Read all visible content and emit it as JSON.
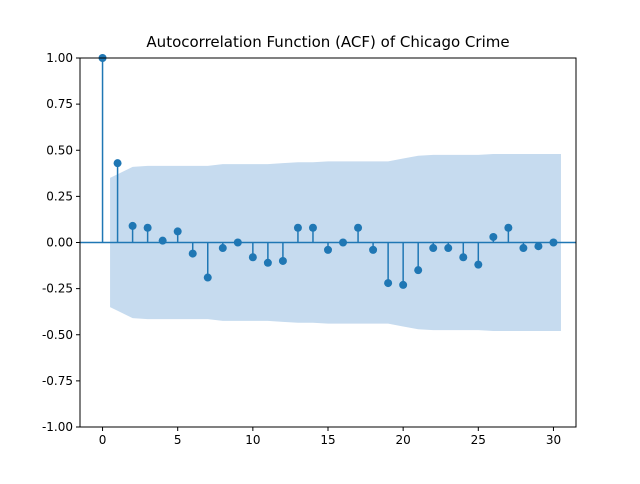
{
  "chart_data": {
    "type": "acf-stem",
    "title": "Autocorrelation Function (ACF) of Chicago Crime",
    "xlabel": "",
    "ylabel": "",
    "xlim": [
      -1.5,
      31.5
    ],
    "ylim": [
      -1.0,
      1.0
    ],
    "xticks": [
      0,
      5,
      10,
      15,
      20,
      25,
      30
    ],
    "yticks": [
      "-1.00",
      "-0.75",
      "-0.50",
      "-0.25",
      "0.00",
      "0.25",
      "0.50",
      "0.75",
      "1.00"
    ],
    "grid": false,
    "legend": "none",
    "colors": {
      "stem": "#1f77b4",
      "band": "#c6dbef",
      "axis": "#000000"
    },
    "lags": [
      0,
      1,
      2,
      3,
      4,
      5,
      6,
      7,
      8,
      9,
      10,
      11,
      12,
      13,
      14,
      15,
      16,
      17,
      18,
      19,
      20,
      21,
      22,
      23,
      24,
      25,
      26,
      27,
      28,
      29,
      30
    ],
    "acf": [
      1.0,
      0.43,
      0.09,
      0.08,
      0.01,
      0.06,
      -0.06,
      -0.19,
      -0.03,
      0.0,
      -0.08,
      -0.11,
      -0.1,
      0.08,
      0.08,
      -0.04,
      0.0,
      0.08,
      -0.04,
      -0.22,
      -0.23,
      -0.15,
      -0.03,
      -0.03,
      -0.08,
      -0.12,
      0.03,
      0.08,
      -0.03,
      -0.02,
      0.0
    ],
    "confidence_band": {
      "lags": [
        0.5,
        1,
        2,
        3,
        4,
        5,
        6,
        7,
        8,
        9,
        10,
        11,
        12,
        13,
        14,
        15,
        16,
        17,
        18,
        19,
        20,
        21,
        22,
        23,
        24,
        25,
        26,
        27,
        28,
        29,
        30.5
      ],
      "upper": [
        0.35,
        0.37,
        0.41,
        0.415,
        0.415,
        0.415,
        0.415,
        0.415,
        0.425,
        0.425,
        0.425,
        0.425,
        0.43,
        0.435,
        0.435,
        0.44,
        0.44,
        0.44,
        0.44,
        0.44,
        0.455,
        0.47,
        0.475,
        0.475,
        0.475,
        0.475,
        0.48,
        0.48,
        0.48,
        0.48,
        0.48
      ]
    }
  }
}
